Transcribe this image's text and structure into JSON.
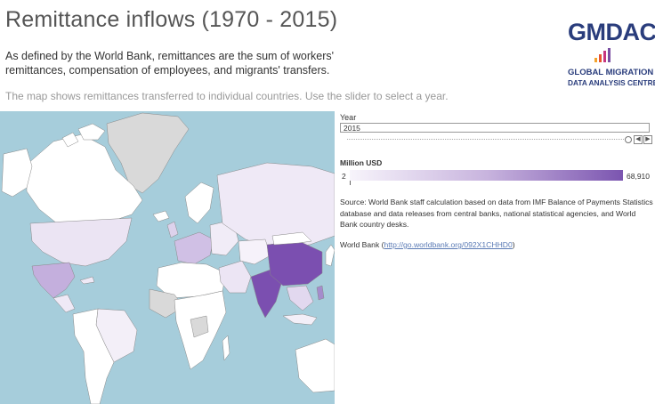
{
  "header": {
    "title": "Remittance inflows (1970 - 2015)",
    "description": "As defined by the World Bank, remittances are the sum of workers' remittances, compensation of employees, and migrants' transfers.",
    "note": "The map shows remittances transferred to individual countries. Use the slider to select a year."
  },
  "logo": {
    "name": "GMDAC",
    "line1": "GLOBAL MIGRATION",
    "line2": "DATA ANALYSIS CENTRE",
    "bar_colors": [
      "#f4a32c",
      "#e8542f",
      "#c7367f",
      "#7a4fa2"
    ]
  },
  "year_filter": {
    "label": "Year",
    "value": "2015"
  },
  "legend": {
    "title": "Million USD",
    "min": "2",
    "max": "68,910",
    "colors": [
      "#f7f4fb",
      "#7b55b0"
    ]
  },
  "source": {
    "text": "Source: World Bank staff calculation based on data from IMF Balance of Payments Statistics database and data releases from central banks, national statistical agencies, and World Bank country desks.",
    "link_prefix": "World Bank (",
    "link_text": "http://go.worldbank.org/092X1CHHD0",
    "link_suffix": ")"
  },
  "map": {
    "ocean_color": "#a6cddb",
    "no_data_color": "#d9d9d9",
    "high_color": "#7b4fb0"
  }
}
